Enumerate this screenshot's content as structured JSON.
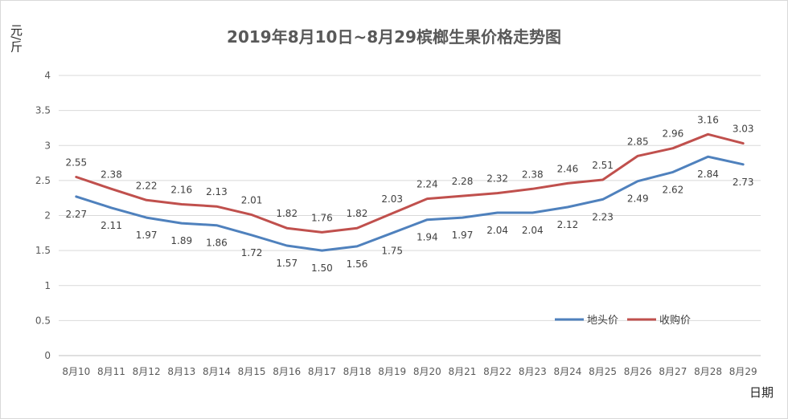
{
  "chart_data": {
    "type": "line",
    "title": "2019年8月10日~8月29槟榔生果价格走势图",
    "ylabel": "元/斤",
    "xlabel": "日期",
    "ylim": [
      0,
      4
    ],
    "yticks": [
      "0",
      "0.5",
      "1",
      "1.5",
      "2",
      "2.5",
      "3",
      "3.5",
      "4"
    ],
    "grid": true,
    "legend_position": "bottom-right",
    "categories": [
      "8月10",
      "8月11",
      "8月12",
      "8月13",
      "8月14",
      "8月15",
      "8月16",
      "8月17",
      "8月18",
      "8月19",
      "8月20",
      "8月21",
      "8月22",
      "8月23",
      "8月24",
      "8月25",
      "8月26",
      "8月27",
      "8月28",
      "8月29"
    ],
    "series": [
      {
        "name": "地头价",
        "color": "#4f81bd",
        "values": [
          2.27,
          2.11,
          1.97,
          1.89,
          1.86,
          1.72,
          1.57,
          1.5,
          1.56,
          1.75,
          1.94,
          1.97,
          2.04,
          2.04,
          2.12,
          2.23,
          2.49,
          2.62,
          2.84,
          2.73
        ],
        "labels": [
          "2.27",
          "2.11",
          "1.97",
          "1.89",
          "1.86",
          "1.72",
          "1.57",
          "1.50",
          "1.56",
          "1.75",
          "1.94",
          "1.97",
          "2.04",
          "2.04",
          "2.12",
          "2.23",
          "2.49",
          "2.62",
          "2.84",
          "2.73"
        ]
      },
      {
        "name": "收购价",
        "color": "#c0504d",
        "values": [
          2.55,
          2.38,
          2.22,
          2.16,
          2.13,
          2.01,
          1.82,
          1.76,
          1.82,
          2.03,
          2.24,
          2.28,
          2.32,
          2.38,
          2.46,
          2.51,
          2.85,
          2.96,
          3.16,
          3.03
        ],
        "labels": [
          "2.55",
          "2.38",
          "2.22",
          "2.16",
          "2.13",
          "2.01",
          "1.82",
          "1.76",
          "1.82",
          "2.03",
          "2.24",
          "2.28",
          "2.32",
          "2.38",
          "2.46",
          "2.51",
          "2.85",
          "2.96",
          "3.16",
          "3.03"
        ]
      }
    ]
  }
}
